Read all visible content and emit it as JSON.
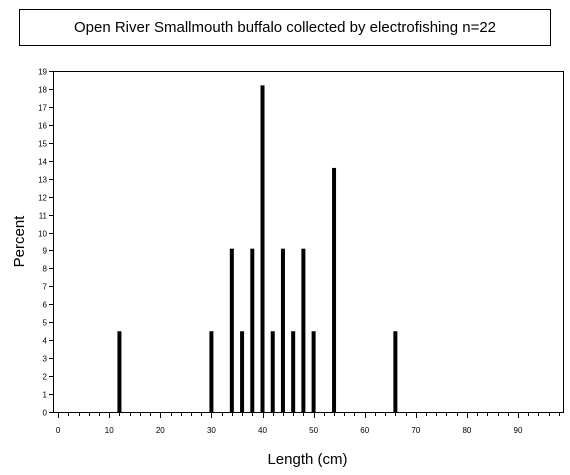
{
  "chart_data": {
    "type": "bar",
    "title": "Open River Smallmouth buffalo collected by electrofishing n=22",
    "xlabel": "Length (cm)",
    "ylabel": "Percent",
    "xlim": [
      -1,
      99
    ],
    "ylim": [
      0,
      19
    ],
    "x_major_ticks": [
      0,
      10,
      20,
      30,
      40,
      50,
      60,
      70,
      80,
      90
    ],
    "x_major_tick_labels": [
      "0",
      "10",
      "20",
      "30",
      "40",
      "50",
      "60",
      "70",
      "80",
      "90"
    ],
    "y_ticks": [
      0,
      1,
      2,
      3,
      4,
      5,
      6,
      7,
      8,
      9,
      10,
      11,
      12,
      13,
      14,
      15,
      16,
      17,
      18,
      19
    ],
    "y_tick_labels": [
      "0",
      "1",
      "2",
      "3",
      "4",
      "5",
      "6",
      "7",
      "8",
      "9",
      "10",
      "11",
      "12",
      "13",
      "14",
      "15",
      "16",
      "17",
      "18",
      "19"
    ],
    "grid": false,
    "bar_color": "#000000",
    "x": [
      12,
      30,
      34,
      36,
      38,
      40,
      42,
      44,
      46,
      48,
      50,
      54,
      66
    ],
    "values": [
      4.5,
      4.5,
      9.1,
      4.5,
      9.1,
      18.2,
      4.5,
      9.1,
      4.5,
      9.1,
      4.5,
      13.6,
      4.5
    ]
  }
}
